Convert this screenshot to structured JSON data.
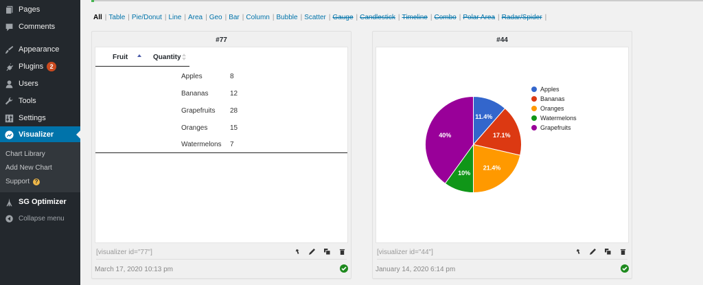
{
  "sidebar": {
    "items": [
      {
        "label": "Pages",
        "icon": "pages-icon"
      },
      {
        "label": "Comments",
        "icon": "comments-icon"
      },
      {
        "label": "Appearance",
        "icon": "appearance-icon"
      },
      {
        "label": "Plugins",
        "icon": "plugins-icon",
        "badge": "2"
      },
      {
        "label": "Users",
        "icon": "users-icon"
      },
      {
        "label": "Tools",
        "icon": "tools-icon"
      },
      {
        "label": "Settings",
        "icon": "settings-icon"
      },
      {
        "label": "Visualizer",
        "icon": "visualizer-icon",
        "active": true
      }
    ],
    "submenu": [
      {
        "label": "Chart Library"
      },
      {
        "label": "Add New Chart"
      },
      {
        "label": "Support"
      }
    ],
    "sg_optimizer": "SG Optimizer",
    "collapse": "Collapse menu"
  },
  "filters": {
    "items": [
      {
        "label": "All",
        "state": "current"
      },
      {
        "label": "Table",
        "state": "enabled"
      },
      {
        "label": "Pie/Donut",
        "state": "enabled"
      },
      {
        "label": "Line",
        "state": "enabled"
      },
      {
        "label": "Area",
        "state": "enabled"
      },
      {
        "label": "Geo",
        "state": "enabled"
      },
      {
        "label": "Bar",
        "state": "enabled"
      },
      {
        "label": "Column",
        "state": "enabled"
      },
      {
        "label": "Bubble",
        "state": "enabled"
      },
      {
        "label": "Scatter",
        "state": "enabled"
      },
      {
        "label": "Gauge",
        "state": "disabled"
      },
      {
        "label": "Candlestick",
        "state": "disabled"
      },
      {
        "label": "Timeline",
        "state": "disabled"
      },
      {
        "label": "Combo",
        "state": "disabled"
      },
      {
        "label": "Polar Area",
        "state": "disabled"
      },
      {
        "label": "Radar/Spider",
        "state": "disabled"
      }
    ],
    "separator": "|"
  },
  "cards": [
    {
      "title": "#77",
      "shortcode": "[visualizer id=\"77\"]",
      "date": "March 17, 2020 10:13 pm",
      "table": {
        "headers": [
          "Fruit",
          "Quantity"
        ],
        "rows": [
          [
            "Apples",
            "8"
          ],
          [
            "Bananas",
            "12"
          ],
          [
            "Grapefruits",
            "28"
          ],
          [
            "Oranges",
            "15"
          ],
          [
            "Watermelons",
            "7"
          ]
        ]
      }
    },
    {
      "title": "#44",
      "shortcode": "[visualizer id=\"44\"]",
      "date": "January 14, 2020 6:14 pm"
    }
  ],
  "chart_data": {
    "type": "pie",
    "title": "#44",
    "categories": [
      "Apples",
      "Bananas",
      "Oranges",
      "Watermelons",
      "Grapefruits"
    ],
    "values": [
      8,
      12,
      15,
      7,
      28
    ],
    "percent_labels": [
      "11.4%",
      "17.1%",
      "21.4%",
      "10%",
      "40%"
    ],
    "colors": [
      "#3366cc",
      "#dc3912",
      "#ff9900",
      "#109618",
      "#990099"
    ],
    "legend_position": "right"
  }
}
